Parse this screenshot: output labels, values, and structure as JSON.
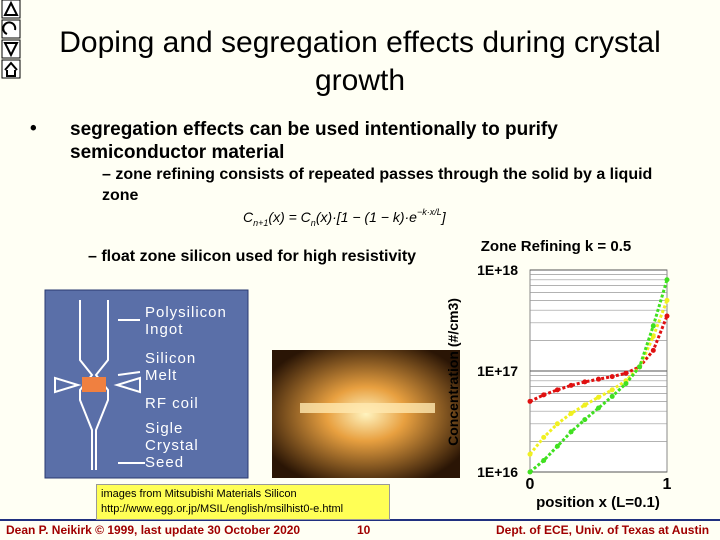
{
  "title": "Doping and segregation effects during crystal growth",
  "bullet": "segregation effects can be used intentionally to purify semiconductor material",
  "sub_bullets": [
    "zone refining consists of repeated passes through the solid by a liquid zone",
    "float zone silicon used for high resistivity"
  ],
  "formula": {
    "c1": "C",
    "s1": "n+1",
    "m1": "(x) = C",
    "s2": "n",
    "m2": "(x)·[1 − (1 − k)·e",
    "sup": "−k·x/L",
    "end": "]"
  },
  "diagram_labels": [
    "Polysilicon Ingot",
    "Silicon Melt",
    "RF coil",
    "Sigle Crystal Seed"
  ],
  "credit": "images from Mitsubishi Materials Silicon http://www.egg.or.jp/MSIL/english/msilhist0-e.html",
  "footer": {
    "left": "Dean P. Neikirk © 1999, last update 30 October 2020",
    "page": "10",
    "right": "Dept. of ECE, Univ. of Texas at Austin"
  },
  "zone_chart": {
    "type": "line",
    "title": "Zone Refining k = 0.5",
    "y_label": "Concentration (#/cm3)",
    "x_label": "position x (L=0.1)",
    "log_y": true,
    "xlim": [
      0,
      1
    ],
    "xticks": [
      0,
      1
    ],
    "ylim": [
      1e+16,
      1e+18
    ],
    "yticks": [
      {
        "value": 1e+16,
        "label": "1E+16"
      },
      {
        "value": 1e+17,
        "label": "1E+17"
      },
      {
        "value": 1e+18,
        "label": "1E+18"
      }
    ],
    "minor_yticks": [
      2e+16,
      3e+16,
      4e+16,
      5e+16,
      6e+16,
      7e+16,
      8e+16,
      9e+16,
      2e+17,
      3e+17,
      4e+17,
      5e+17,
      6e+17,
      7e+17,
      8e+17,
      9e+17
    ],
    "x": [
      0,
      0.1,
      0.2,
      0.3,
      0.4,
      0.5,
      0.6,
      0.7,
      0.8,
      0.9,
      1
    ],
    "series": [
      {
        "color": "#e01010",
        "values": [
          5e+16,
          5.8e+16,
          6.5e+16,
          7.2e+16,
          7.8e+16,
          8.3e+16,
          8.8e+16,
          9.5e+16,
          1.1e+17,
          1.6e+17,
          3.5e+17
        ]
      },
      {
        "color": "#f0f020",
        "values": [
          1.5e+16,
          2.2e+16,
          3e+16,
          3.8e+16,
          4.6e+16,
          5.5e+16,
          6.5e+16,
          8e+16,
          1.1e+17,
          2.2e+17,
          5e+17
        ]
      },
      {
        "color": "#40e020",
        "values": [
          1e+16,
          1.3e+16,
          1.8e+16,
          2.5e+16,
          3.3e+16,
          4.3e+16,
          5.6e+16,
          7.5e+16,
          1.1e+17,
          2.8e+17,
          8e+17
        ]
      }
    ]
  }
}
